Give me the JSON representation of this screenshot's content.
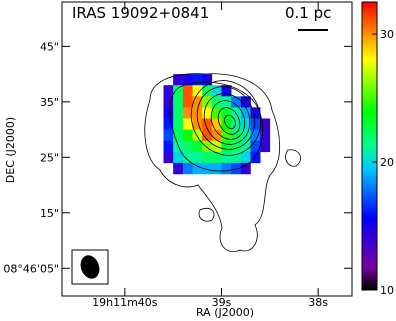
{
  "chart_data": {
    "type": "heatmap",
    "title": "IRAS 19092+0841",
    "annotation": "0.1 pc",
    "xlabel": "RA (J2000)",
    "ylabel": "DEC (J2000)",
    "colormap": "rainbow",
    "x": [
      39.55,
      39.45,
      39.35,
      39.25,
      39.15,
      39.05,
      38.95,
      38.85,
      38.75,
      38.65,
      38.55
    ],
    "y": [
      39,
      37,
      35,
      33,
      31,
      29,
      27,
      25,
      23
    ],
    "values": [
      [
        null,
        14,
        15,
        16,
        15,
        null,
        null,
        null,
        null,
        null,
        null
      ],
      [
        14,
        22,
        31,
        28,
        22,
        20,
        15,
        null,
        null,
        null,
        null
      ],
      [
        14,
        22,
        31,
        30,
        26,
        22,
        21,
        18,
        15,
        null,
        null
      ],
      [
        15,
        22,
        30,
        30,
        28,
        25,
        23,
        21,
        19,
        15,
        null
      ],
      [
        16,
        22,
        28,
        30,
        31,
        29,
        24,
        21,
        20,
        17,
        14
      ],
      [
        17,
        22,
        24,
        27,
        31,
        30,
        25,
        22,
        21,
        18,
        14
      ],
      [
        16,
        21,
        22,
        23,
        26,
        27,
        23,
        22,
        21,
        17,
        14
      ],
      [
        14,
        20,
        21,
        21,
        22,
        22,
        21,
        21,
        20,
        16,
        null
      ],
      [
        null,
        14,
        18,
        19,
        19,
        19,
        18,
        17,
        14,
        null,
        null
      ]
    ],
    "xlim": [
      40.65,
      37.65
    ],
    "xticks": [
      {
        "value": 40,
        "label": "19h11m40s"
      },
      {
        "value": 39,
        "label": "39s"
      },
      {
        "value": 38,
        "label": "38s"
      }
    ],
    "ylim": [
      0,
      53
    ],
    "yticks": [
      {
        "value": 5,
        "label": "08°46'05\""
      },
      {
        "value": 15,
        "label": "15\""
      },
      {
        "value": 25,
        "label": "25\""
      },
      {
        "value": 35,
        "label": "35\""
      },
      {
        "value": 45,
        "label": "45\""
      }
    ],
    "clim": [
      10,
      32.5
    ],
    "cticks": [
      10,
      20,
      30
    ]
  }
}
